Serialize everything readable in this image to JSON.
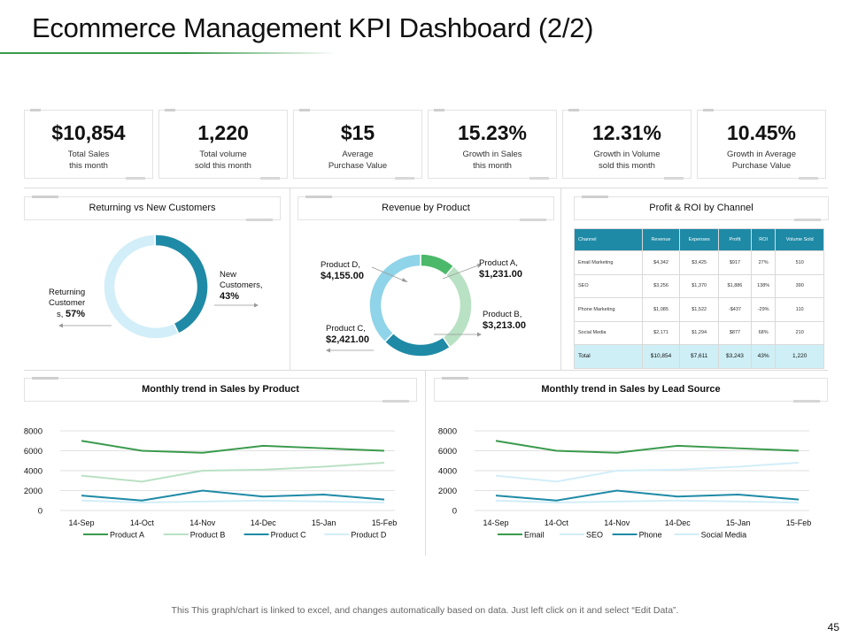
{
  "title": "Ecommerce Management KPI Dashboard (2/2)",
  "colors": {
    "accent_green": "#3a9a4c",
    "teal_dark": "#1e8aa6",
    "teal_light": "#8fd4e8",
    "green_light": "#b9e1c4",
    "ice": "#d2eef8"
  },
  "kpis": [
    {
      "value": "$10,854",
      "label": "Total Sales\nthis month"
    },
    {
      "value": "1,220",
      "label": "Total  volume\nsold this month"
    },
    {
      "value": "$15",
      "label": "Average\nPurchase Value"
    },
    {
      "value": "15.23%",
      "label": "Growth in Sales\nthis month"
    },
    {
      "value": "12.31%",
      "label": "Growth in Volume\nsold this month"
    },
    {
      "value": "10.45%",
      "label": "Growth in Average\nPurchase Value"
    }
  ],
  "panels": {
    "returning": "Returning vs New Customers",
    "revenue": "Revenue by Product",
    "profit": "Profit & ROI by Channel",
    "trend_product": "Monthly trend in Sales by Product",
    "trend_lead": "Monthly trend in Sales by Lead Source"
  },
  "customers_labels": {
    "returning_line1": "Returning",
    "returning_line2": "Customer",
    "returning_line3": "s, ",
    "returning_pct": "57%",
    "new_line1": "New",
    "new_line2": "Customers,",
    "new_pct": "43%"
  },
  "revenue_labels": {
    "a_name": "Product A,",
    "a_value": "$1,231.00",
    "b_name": "Product B,",
    "b_value": "$3,213.00",
    "c_name": "Product C,",
    "c_value": "$2,421.00",
    "d_name": "Product D,",
    "d_value": "$4,155.00"
  },
  "roi_table": {
    "headers": [
      "Channel",
      "Revenue",
      "Expenses",
      "Profit",
      "ROI",
      "Volume Sold"
    ],
    "rows": [
      [
        "Email Marketing",
        "$4,342",
        "$3,425",
        "$917",
        "27%",
        "510"
      ],
      [
        "SEO",
        "$3,256",
        "$1,370",
        "$1,886",
        "138%",
        "390"
      ],
      [
        "Phone Marketing",
        "$1,085",
        "$1,522",
        "-$437",
        "-29%",
        "110"
      ],
      [
        "Social Media",
        "$2,171",
        "$1,294",
        "$877",
        "68%",
        "210"
      ],
      [
        "Total",
        "$10,854",
        "$7,611",
        "$3,243",
        "43%",
        "1,220"
      ]
    ]
  },
  "chart_data": [
    {
      "type": "pie",
      "title": "Returning vs New Customers",
      "categories": [
        "Returning Customers",
        "New Customers"
      ],
      "values": [
        57,
        43
      ],
      "colors": [
        "#d2eef8",
        "#1e8aa6"
      ]
    },
    {
      "type": "pie",
      "title": "Revenue by Product",
      "categories": [
        "Product A",
        "Product B",
        "Product C",
        "Product D"
      ],
      "values": [
        1231,
        3213,
        2421,
        4155
      ],
      "colors": [
        "#4cb86a",
        "#b9e1c4",
        "#1e8aa6",
        "#8fd4e8"
      ]
    },
    {
      "type": "line",
      "title": "Monthly trend in Sales by Product",
      "categories": [
        "14-Sep",
        "14-Oct",
        "14-Nov",
        "14-Dec",
        "15-Jan",
        "15-Feb"
      ],
      "yticks": [
        "0",
        "2000",
        "4000",
        "6000",
        "8000"
      ],
      "ylim": [
        0,
        8000
      ],
      "series": [
        {
          "name": "Product A",
          "color": "#3a9a4c",
          "values": [
            7000,
            6000,
            5800,
            6500,
            6250,
            6000
          ]
        },
        {
          "name": "Product B",
          "color": "#b9e1c4",
          "values": [
            3500,
            2900,
            4000,
            4100,
            4400,
            4800
          ]
        },
        {
          "name": "Product C",
          "color": "#1e8aa6",
          "values": [
            1500,
            1000,
            2000,
            1400,
            1600,
            1100
          ]
        },
        {
          "name": "Product D",
          "color": "#d2eef8",
          "values": [
            1000,
            800,
            900,
            1000,
            900,
            800
          ]
        }
      ]
    },
    {
      "type": "line",
      "title": "Monthly trend in Sales by Lead Source",
      "categories": [
        "14-Sep",
        "14-Oct",
        "14-Nov",
        "14-Dec",
        "15-Jan",
        "15-Feb"
      ],
      "yticks": [
        "0",
        "2000",
        "4000",
        "6000",
        "8000"
      ],
      "ylim": [
        0,
        8000
      ],
      "series": [
        {
          "name": "Email",
          "color": "#3a9a4c",
          "values": [
            7000,
            6000,
            5800,
            6500,
            6250,
            6000
          ]
        },
        {
          "name": "SEO",
          "color": "#d2eef8",
          "values": [
            3500,
            2900,
            4000,
            4100,
            4400,
            4800
          ]
        },
        {
          "name": "Phone",
          "color": "#1e8aa6",
          "values": [
            1500,
            1000,
            2000,
            1400,
            1600,
            1100
          ]
        },
        {
          "name": "Social Media",
          "color": "#d2eef8",
          "values": [
            1000,
            800,
            900,
            1000,
            900,
            800
          ]
        }
      ]
    }
  ],
  "footnote": "This This graph/chart is linked to excel, and changes automatically based on data. Just left click on it and select “Edit Data”.",
  "page_number": "45"
}
